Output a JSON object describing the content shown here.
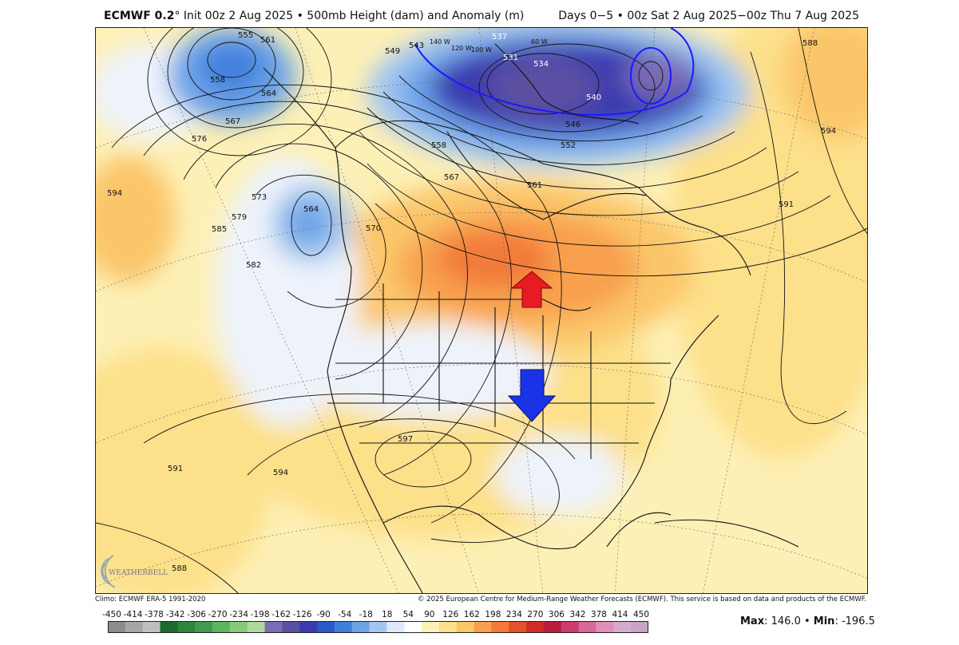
{
  "header": {
    "model": "ECMWF 0.2",
    "degree": "°",
    "init_text": "Init 00z 2 Aug 2025 • 500mb Height (dam) and Anomaly (m)",
    "range_text": "Days 0−5 • 00z Sat 2 Aug 2025−00z Thu 7 Aug 2025"
  },
  "footer": {
    "climo": "Climo: ECMWF ERA-5 1991-2020",
    "copyright": "© 2025 European Centre for Medium-Range Weather Forecasts (ECMWF). This service is based on data and products of the ECMWF."
  },
  "stats": {
    "max_label": "Max",
    "max_value": ": 146.0 • ",
    "min_label": "Min",
    "min_value": ": -196.5"
  },
  "logo_text": "WEATHERBELL",
  "colorbar": {
    "labels": [
      "-450",
      "-414",
      "-378",
      "-342",
      "-306",
      "-270",
      "-234",
      "-198",
      "-162",
      "-126",
      "-90",
      "-54",
      "-18",
      "18",
      "54",
      "90",
      "126",
      "162",
      "198",
      "234",
      "270",
      "306",
      "342",
      "378",
      "414",
      "450"
    ],
    "colors": [
      "#8c8c8c",
      "#a6a6a6",
      "#bfbfbf",
      "#1f6b2e",
      "#2e8540",
      "#3f9c4f",
      "#5fb55c",
      "#86c97a",
      "#aed89d",
      "#7a6bb5",
      "#5b4fa3",
      "#3b3bb0",
      "#2a58c9",
      "#3f7fdc",
      "#6ca3e8",
      "#a3c6f0",
      "#dce9f8",
      "#ffffff",
      "#fdf1b8",
      "#fde08a",
      "#fbc66a",
      "#f8a04d",
      "#f27a3a",
      "#e3502c",
      "#cf2d26",
      "#b81d3a",
      "#c93c6e",
      "#d9689a",
      "#e08fb8",
      "#d7a9cf",
      "#c9a2c8"
    ],
    "colors_note": "discrete fill palette"
  },
  "contour_labels": [
    "555",
    "561",
    "558",
    "564",
    "567",
    "576",
    "594",
    "573",
    "579",
    "585",
    "582",
    "564",
    "570",
    "549",
    "543",
    "140 W",
    "120 W",
    "100 W",
    "537",
    "531",
    "534",
    "540",
    "546",
    "552",
    "558",
    "567",
    "561",
    "60 W",
    "588",
    "594",
    "591",
    "597",
    "594",
    "591",
    "588"
  ],
  "arrows": [
    {
      "direction": "up",
      "color": "#e81b23"
    },
    {
      "direction": "down",
      "color": "#1a33e6"
    }
  ]
}
